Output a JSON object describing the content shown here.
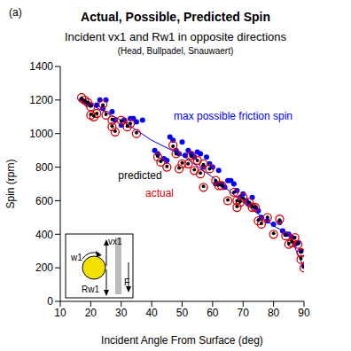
{
  "chart_data": {
    "type": "scatter",
    "title": "Actual, Possible, Predicted Spin",
    "subtitle": [
      "Incident vx1 and Rw1 in opposite directions",
      "(Head, Bullpadel, Snauwaert)"
    ],
    "x_label": "Incident Angle From Surface (deg)",
    "y_label": "Spin (rpm)",
    "xlim": [
      10,
      90
    ],
    "xticks": [
      10,
      20,
      30,
      40,
      50,
      60,
      70,
      80,
      90
    ],
    "ylim": [
      0,
      1400
    ],
    "yticks": [
      0,
      200,
      400,
      600,
      800,
      1000,
      1200,
      1400
    ],
    "grid": false,
    "annotations": [
      {
        "text": "(a)",
        "color": "#000000"
      },
      {
        "text": "max possible friction spin",
        "color": "#0000ff"
      },
      {
        "text": "predicted",
        "color": "#000000"
      },
      {
        "text": "actual",
        "color": "#dd0000"
      },
      {
        "text": "vx1",
        "color": "#000000"
      },
      {
        "text": "w1",
        "color": "#000000"
      },
      {
        "text": "Rw1",
        "color": "#000000"
      },
      {
        "text": "F",
        "color": "#000000"
      }
    ],
    "series": [
      {
        "type": "line",
        "color": "#0000ff",
        "x": [
          17,
          30,
          40,
          50,
          60,
          70,
          80,
          85,
          90
        ],
        "values": [
          1200,
          1080,
          960,
          870,
          740,
          590,
          450,
          400,
          200
        ]
      },
      {
        "type": "scatter",
        "marker": "circle",
        "color": "#0000ff",
        "x": [
          17,
          18,
          19,
          20,
          22,
          23,
          24,
          25,
          27,
          28,
          30,
          31,
          33,
          34,
          35,
          37,
          41,
          42,
          44,
          45,
          46,
          47,
          48,
          49,
          50,
          51,
          52,
          53,
          54,
          55,
          56,
          57,
          58,
          59,
          60,
          61,
          62,
          63,
          64,
          65,
          66,
          67,
          68,
          69,
          70,
          71,
          72,
          73,
          74,
          75,
          76,
          78,
          80,
          82,
          83,
          84,
          85,
          86,
          87,
          88,
          89,
          90
        ],
        "values": [
          1200,
          1190,
          1180,
          1170,
          1170,
          1200,
          1150,
          1200,
          1130,
          1080,
          1050,
          1080,
          1090,
          1090,
          1070,
          1080,
          900,
          880,
          850,
          840,
          980,
          960,
          900,
          880,
          950,
          870,
          900,
          880,
          860,
          890,
          880,
          800,
          860,
          820,
          800,
          700,
          780,
          700,
          680,
          720,
          720,
          700,
          660,
          620,
          640,
          600,
          580,
          620,
          560,
          540,
          500,
          480,
          460,
          470,
          420,
          400,
          400,
          380,
          340,
          350,
          300,
          210
        ]
      },
      {
        "type": "scatter",
        "marker": "open_circle",
        "color": "#dd0000",
        "x": [
          17,
          18,
          19,
          20,
          20,
          21,
          22,
          24,
          25,
          27,
          27,
          28,
          30,
          32,
          33,
          35,
          42,
          43,
          45,
          47,
          48,
          49,
          50,
          52,
          53,
          54,
          55,
          56,
          57,
          57,
          59,
          61,
          62,
          63,
          65,
          67,
          68,
          68,
          69,
          70,
          72,
          73,
          74,
          75,
          76,
          78,
          80,
          82,
          84,
          85,
          86,
          87,
          88,
          89,
          89,
          90
        ],
        "values": [
          1215,
          1200,
          1185,
          1160,
          1110,
          1100,
          1120,
          1175,
          1110,
          1080,
          1040,
          1010,
          1080,
          1040,
          1060,
          1000,
          860,
          830,
          800,
          930,
          880,
          790,
          820,
          820,
          870,
          780,
          840,
          760,
          820,
          680,
          790,
          720,
          690,
          690,
          600,
          650,
          600,
          560,
          590,
          620,
          590,
          560,
          560,
          480,
          460,
          500,
          400,
          490,
          390,
          340,
          350,
          380,
          340,
          290,
          250,
          200
        ]
      },
      {
        "type": "scatter",
        "marker": "dot",
        "color": "#000000",
        "x": [
          17,
          18,
          19,
          20,
          20,
          21,
          22,
          24,
          25,
          27,
          27,
          28,
          30,
          32,
          33,
          35,
          42,
          43,
          45,
          47,
          48,
          49,
          50,
          52,
          53,
          54,
          55,
          56,
          57,
          57,
          59,
          61,
          62,
          63,
          65,
          67,
          68,
          68,
          69,
          70,
          72,
          73,
          74,
          75,
          76,
          78,
          80,
          82,
          84,
          85,
          86,
          87,
          88,
          89,
          89,
          90
        ],
        "values": [
          1210,
          1195,
          1185,
          1165,
          1115,
          1105,
          1120,
          1170,
          1115,
          1085,
          1045,
          1015,
          1075,
          1045,
          1060,
          1005,
          865,
          835,
          805,
          925,
          880,
          795,
          825,
          820,
          865,
          785,
          840,
          765,
          815,
          685,
          790,
          720,
          695,
          690,
          605,
          650,
          600,
          565,
          595,
          615,
          590,
          565,
          560,
          485,
          465,
          500,
          405,
          485,
          395,
          345,
          355,
          380,
          345,
          295,
          255,
          205
        ]
      }
    ]
  }
}
